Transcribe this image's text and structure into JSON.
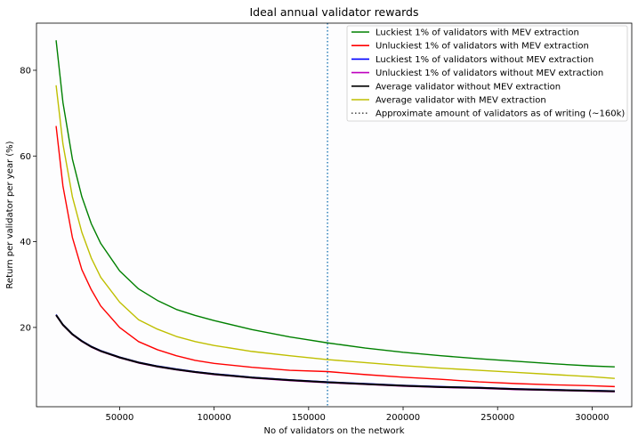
{
  "chart_data": {
    "type": "line",
    "title": "Ideal annual validator rewards",
    "xlabel": "No of validators on the network",
    "ylabel": "Return per validator per year (%)",
    "xlim": [
      6000,
      321000
    ],
    "ylim": [
      1.5,
      91
    ],
    "xticks": [
      {
        "value": 50000,
        "label": "50000"
      },
      {
        "value": 100000,
        "label": "100000"
      },
      {
        "value": 150000,
        "label": "150000"
      },
      {
        "value": 200000,
        "label": "200000"
      },
      {
        "value": 250000,
        "label": "250000"
      },
      {
        "value": 300000,
        "label": "300000"
      }
    ],
    "yticks": [
      {
        "value": 20,
        "label": "20"
      },
      {
        "value": 40,
        "label": "40"
      },
      {
        "value": 60,
        "label": "60"
      },
      {
        "value": 80,
        "label": "80"
      }
    ],
    "grid": false,
    "legend_position": "top-right",
    "x": [
      16384,
      20000,
      25000,
      30000,
      35000,
      40000,
      50000,
      60000,
      70000,
      80000,
      90000,
      100000,
      120000,
      140000,
      160000,
      180000,
      200000,
      220000,
      240000,
      260000,
      280000,
      300000,
      312000
    ],
    "series": [
      {
        "name": "Luckiest 1% of validators with MEV extraction",
        "color": "#008000",
        "style": "solid",
        "values": [
          87.0,
          72.5,
          59.3,
          50.5,
          44.2,
          39.6,
          33.2,
          29.0,
          26.3,
          24.2,
          22.8,
          21.6,
          19.5,
          17.8,
          16.4,
          15.2,
          14.2,
          13.4,
          12.7,
          12.1,
          11.5,
          11.0,
          10.8
        ]
      },
      {
        "name": "Unluckiest 1% of validators with MEV extraction",
        "color": "#ff0000",
        "style": "solid",
        "values": [
          67.0,
          53.0,
          41.0,
          33.5,
          28.8,
          25.0,
          20.0,
          16.7,
          14.8,
          13.4,
          12.3,
          11.6,
          10.7,
          10.0,
          9.7,
          9.0,
          8.4,
          7.9,
          7.3,
          6.9,
          6.6,
          6.4,
          6.2
        ]
      },
      {
        "name": "Luckiest 1% of validators without MEV extraction",
        "color": "#0000ff",
        "style": "solid",
        "values": [
          23.0,
          20.7,
          18.5,
          16.9,
          15.6,
          14.6,
          13.1,
          11.9,
          11.0,
          10.3,
          9.7,
          9.2,
          8.4,
          7.8,
          7.3,
          6.9,
          6.5,
          6.2,
          6.0,
          5.7,
          5.5,
          5.3,
          5.2
        ]
      },
      {
        "name": "Unluckiest 1% of validators without MEV extraction",
        "color": "#bf00bf",
        "style": "solid",
        "values": [
          22.8,
          20.5,
          18.3,
          16.7,
          15.4,
          14.4,
          12.9,
          11.7,
          10.8,
          10.1,
          9.5,
          9.0,
          8.2,
          7.6,
          7.1,
          6.7,
          6.3,
          6.0,
          5.8,
          5.5,
          5.3,
          5.1,
          5.0
        ]
      },
      {
        "name": "Average validator without MEV extraction",
        "color": "#000000",
        "style": "solid",
        "values": [
          22.9,
          20.6,
          18.4,
          16.8,
          15.5,
          14.5,
          13.0,
          11.8,
          10.9,
          10.2,
          9.6,
          9.1,
          8.3,
          7.7,
          7.2,
          6.8,
          6.4,
          6.1,
          5.9,
          5.6,
          5.4,
          5.2,
          5.1
        ]
      },
      {
        "name": "Average validator with MEV extraction",
        "color": "#bfbf00",
        "style": "solid",
        "values": [
          76.5,
          62.8,
          50.5,
          42.2,
          36.2,
          31.7,
          25.9,
          21.8,
          19.6,
          17.9,
          16.7,
          15.8,
          14.4,
          13.4,
          12.5,
          11.8,
          11.1,
          10.5,
          10.0,
          9.5,
          9.0,
          8.5,
          8.1
        ]
      }
    ],
    "vline": {
      "name": "Approximate amount of validators as of writing (~160k)",
      "x": 160000,
      "color": "#1f77b4",
      "style": "dotted"
    }
  }
}
